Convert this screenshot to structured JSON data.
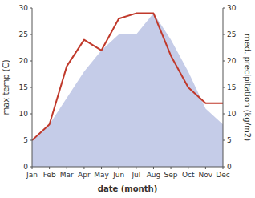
{
  "chart_data": {
    "type": "line",
    "categories": [
      "Jan",
      "Feb",
      "Mar",
      "Apr",
      "May",
      "Jun",
      "Jul",
      "Aug",
      "Sep",
      "Oct",
      "Nov",
      "Dec"
    ],
    "series": [
      {
        "type": "area",
        "color": "#c5cce8",
        "values": [
          5,
          8,
          13,
          18,
          22,
          25,
          25,
          29,
          24,
          18,
          11,
          8
        ]
      },
      {
        "type": "line",
        "color": "#c0392b",
        "axis": "y2",
        "values": [
          5,
          8,
          19,
          24,
          22,
          28,
          29,
          29,
          21,
          15,
          12,
          12
        ]
      }
    ],
    "xlabel": "date (month)",
    "ylabel": "max temp (C)",
    "y2label": "med. precipitation (kg/m2)",
    "ylim": [
      0,
      30
    ],
    "yticks": [
      0,
      5,
      10,
      15,
      20,
      25,
      30
    ],
    "y2lim": [
      0,
      30
    ],
    "y2ticks": [
      0,
      5,
      10,
      15,
      20,
      25,
      30
    ],
    "grid": false
  }
}
